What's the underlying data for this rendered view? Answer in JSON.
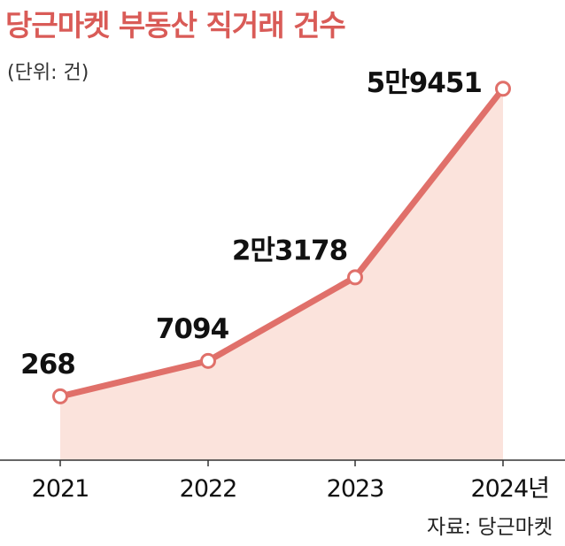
{
  "header": {
    "title": "당근마켓 부동산 직거래 건수",
    "unit": "(단위: 건)"
  },
  "footer": {
    "source": "자료: 당근마켓"
  },
  "colors": {
    "title": "#d95b57",
    "line": "#e0706a",
    "area": "#fbe3dc",
    "marker_fill": "#ffffff"
  },
  "chart_data": {
    "type": "area",
    "categories": [
      "2021",
      "2022",
      "2023",
      "2024"
    ],
    "tick_labels": [
      "2021",
      "2022",
      "2023",
      "2024년"
    ],
    "values": [
      268,
      7094,
      23178,
      59451
    ],
    "data_labels": [
      "268",
      "7094",
      "2만3178",
      "5만9451"
    ],
    "title": "당근마켓 부동산 직거래 건수",
    "ylabel": "",
    "xlabel": "",
    "ylim": [
      -12000,
      60000
    ],
    "grid": false,
    "legend": "none"
  }
}
